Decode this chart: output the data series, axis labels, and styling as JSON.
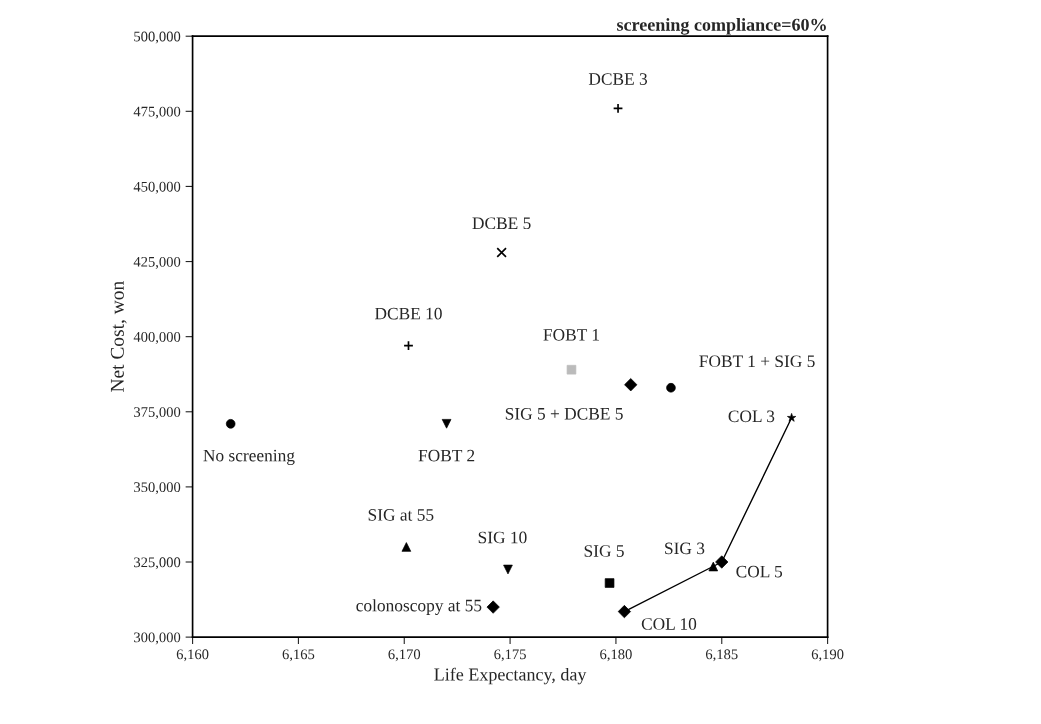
{
  "chart_data": {
    "type": "scatter",
    "title": "screening compliance=60%",
    "xlabel": "Life Expectancy, day",
    "ylabel": "Net Cost, won",
    "xlim": [
      6160,
      6190
    ],
    "ylim": [
      300000,
      500000
    ],
    "xticks": [
      {
        "value": 6160,
        "label": "6,160"
      },
      {
        "value": 6165,
        "label": "6,165"
      },
      {
        "value": 6170,
        "label": "6,170"
      },
      {
        "value": 6175,
        "label": "6,175"
      },
      {
        "value": 6180,
        "label": "6,180"
      },
      {
        "value": 6185,
        "label": "6,185"
      },
      {
        "value": 6190,
        "label": "6,190"
      }
    ],
    "yticks": [
      {
        "value": 300000,
        "label": "300,000"
      },
      {
        "value": 325000,
        "label": "325,000"
      },
      {
        "value": 350000,
        "label": "350,000"
      },
      {
        "value": 375000,
        "label": "375,000"
      },
      {
        "value": 400000,
        "label": "400,000"
      },
      {
        "value": 425000,
        "label": "425,000"
      },
      {
        "value": 450000,
        "label": "450,000"
      },
      {
        "value": 475000,
        "label": "475,000"
      },
      {
        "value": 500000,
        "label": "500,000"
      }
    ],
    "grid": false,
    "series": [
      {
        "type": "line",
        "color": "#000000",
        "marker": "none",
        "x": [
          6180.4,
          6185.0,
          6188.3
        ],
        "values": [
          308500,
          325000,
          373000
        ]
      },
      {
        "name": "DCBE 3",
        "color": "#000000",
        "marker": "plus",
        "x": [
          6180.1
        ],
        "values": [
          476000
        ]
      },
      {
        "name": "DCBE 5",
        "color": "#000000",
        "marker": "cross",
        "x": [
          6174.6
        ],
        "values": [
          428000
        ]
      },
      {
        "name": "DCBE 10",
        "color": "#000000",
        "marker": "plus",
        "x": [
          6170.2
        ],
        "values": [
          397000
        ]
      },
      {
        "name": "FOBT 1",
        "color": "#bbbbbb",
        "marker": "square",
        "x": [
          6177.9
        ],
        "values": [
          389000
        ]
      },
      {
        "name": "SIG 5 + DCBE 5",
        "color": "#000000",
        "marker": "diamond",
        "x": [
          6180.7
        ],
        "values": [
          384000
        ]
      },
      {
        "name": "FOBT 1 + SIG 5",
        "color": "#000000",
        "marker": "circle",
        "x": [
          6182.6
        ],
        "values": [
          383000
        ]
      },
      {
        "name": "COL 3",
        "color": "#000000",
        "marker": "star",
        "x": [
          6188.3
        ],
        "values": [
          373000
        ]
      },
      {
        "name": "No screening",
        "color": "#000000",
        "marker": "circle",
        "x": [
          6161.8
        ],
        "values": [
          371000
        ]
      },
      {
        "name": "FOBT 2",
        "color": "#000000",
        "marker": "triangle_down",
        "x": [
          6172.0
        ],
        "values": [
          371000
        ]
      },
      {
        "name": "SIG at 55",
        "color": "#000000",
        "marker": "triangle",
        "x": [
          6170.1
        ],
        "values": [
          330000
        ]
      },
      {
        "name": "SIG 10",
        "color": "#000000",
        "marker": "triangle_down",
        "x": [
          6174.9
        ],
        "values": [
          322500
        ]
      },
      {
        "name": "colonoscopy at 55",
        "color": "#000000",
        "marker": "diamond",
        "x": [
          6174.2
        ],
        "values": [
          310000
        ]
      },
      {
        "name": "SIG 5",
        "color": "#000000",
        "marker": "square",
        "x": [
          6179.7
        ],
        "values": [
          318000
        ]
      },
      {
        "name": "SIG 3",
        "color": "#000000",
        "marker": "triangle",
        "x": [
          6184.6
        ],
        "values": [
          323500
        ]
      },
      {
        "name": "COL 5",
        "color": "#000000",
        "marker": "diamond",
        "x": [
          6185.0
        ],
        "values": [
          325000
        ]
      },
      {
        "name": "COL 10",
        "color": "#000000",
        "marker": "diamond",
        "x": [
          6180.4
        ],
        "values": [
          308500
        ]
      }
    ]
  }
}
